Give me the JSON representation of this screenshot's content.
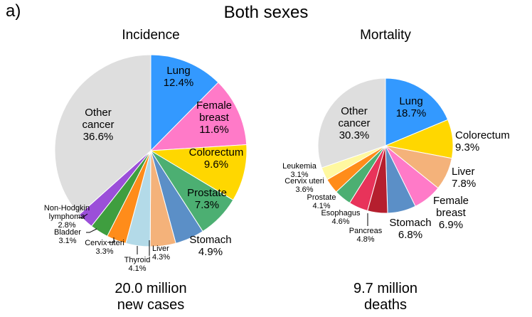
{
  "figure": {
    "panel_label": "a)",
    "title": "Both sexes"
  },
  "chart_data": [
    {
      "type": "pie",
      "title": "Incidence",
      "unit": "%",
      "footer": [
        "20.0 million",
        "new cases"
      ],
      "slices": [
        {
          "label": "Lung",
          "value": 12.4,
          "color": "#3399ff"
        },
        {
          "label": "Female breast",
          "value": 11.6,
          "color": "#ff7ac8"
        },
        {
          "label": "Colorectum",
          "value": 9.6,
          "color": "#ffd700"
        },
        {
          "label": "Prostate",
          "value": 7.3,
          "color": "#4caf72"
        },
        {
          "label": "Stomach",
          "value": 4.9,
          "color": "#5b8fc7"
        },
        {
          "label": "Liver",
          "value": 4.3,
          "color": "#f4b27a"
        },
        {
          "label": "Thyroid",
          "value": 4.1,
          "color": "#b3dae8"
        },
        {
          "label": "Cervix uteri",
          "value": 3.3,
          "color": "#ff8c1a"
        },
        {
          "label": "Bladder",
          "value": 3.1,
          "color": "#3f9e3f"
        },
        {
          "label": "Non-Hodgkin lymphoma",
          "value": 2.8,
          "color": "#9b4fd9"
        },
        {
          "label": "Other cancer",
          "value": 36.6,
          "color": "#dedede"
        }
      ]
    },
    {
      "type": "pie",
      "title": "Mortality",
      "unit": "%",
      "footer": [
        "9.7 million",
        "deaths"
      ],
      "slices": [
        {
          "label": "Lung",
          "value": 18.7,
          "color": "#3399ff"
        },
        {
          "label": "Colorectum",
          "value": 9.3,
          "color": "#ffd700"
        },
        {
          "label": "Liver",
          "value": 7.8,
          "color": "#f4b27a"
        },
        {
          "label": "Female breast",
          "value": 6.9,
          "color": "#ff7ac8"
        },
        {
          "label": "Stomach",
          "value": 6.8,
          "color": "#5b8fc7"
        },
        {
          "label": "Pancreas",
          "value": 4.8,
          "color": "#b51f2e"
        },
        {
          "label": "Esophagus",
          "value": 4.6,
          "color": "#e8335a"
        },
        {
          "label": "Prostate",
          "value": 4.1,
          "color": "#4caf72"
        },
        {
          "label": "Cervix uteri",
          "value": 3.6,
          "color": "#ff8c1a"
        },
        {
          "label": "Leukemia",
          "value": 3.1,
          "color": "#fff8a0"
        },
        {
          "label": "Other cancer",
          "value": 30.3,
          "color": "#dedede"
        }
      ]
    }
  ]
}
